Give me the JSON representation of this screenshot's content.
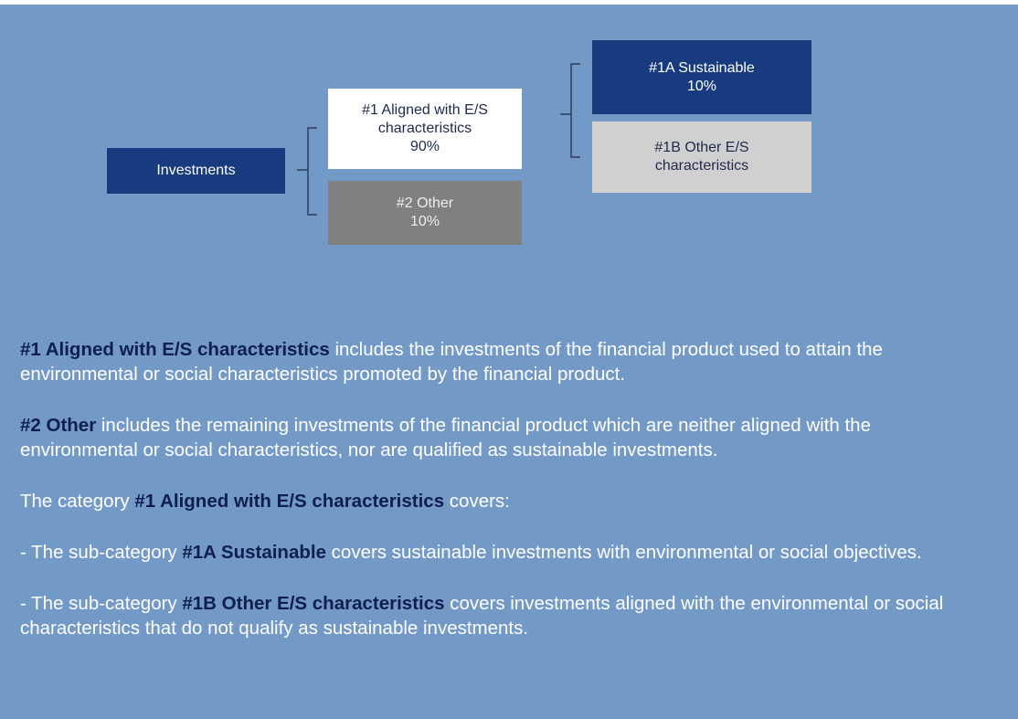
{
  "nodes": [
    {
      "lines": [
        "Investments"
      ]
    },
    {
      "lines": [
        "#1 Aligned with E/S",
        "characteristics",
        "90%"
      ]
    },
    {
      "lines": [
        "#2 Other",
        "10%"
      ]
    },
    {
      "lines": [
        "#1A Sustainable",
        "10%"
      ]
    },
    {
      "lines": [
        "#1B Other E/S",
        "characteristics"
      ]
    }
  ],
  "paragraphs": [
    [
      {
        "text": "#1 Aligned with E/S characteristics",
        "bold": true
      },
      {
        "text": " includes the investments of the financial product used to attain the environmental or social characteristics promoted by the financial product.",
        "bold": false
      }
    ],
    [
      {
        "text": "#2 Other",
        "bold": true
      },
      {
        "text": " includes the remaining investments of the financial product which are neither aligned with the environmental or social characteristics, nor are qualified as sustainable investments.",
        "bold": false
      }
    ],
    [
      {
        "text": "The category ",
        "bold": false
      },
      {
        "text": "#1 Aligned with E/S characteristics",
        "bold": true
      },
      {
        "text": " covers:",
        "bold": false
      }
    ],
    [
      {
        "text": "- The sub-category ",
        "bold": false
      },
      {
        "text": "#1A Sustainable",
        "bold": true
      },
      {
        "text": " covers sustainable investments with environmental or social objectives.",
        "bold": false
      }
    ],
    [
      {
        "text": "- The sub-category ",
        "bold": false
      },
      {
        "text": "#1B Other E/S characteristics",
        "bold": true
      },
      {
        "text": " covers investments aligned with the environmental or social characteristics that do not qualify as sustainable investments.",
        "bold": false
      }
    ]
  ]
}
